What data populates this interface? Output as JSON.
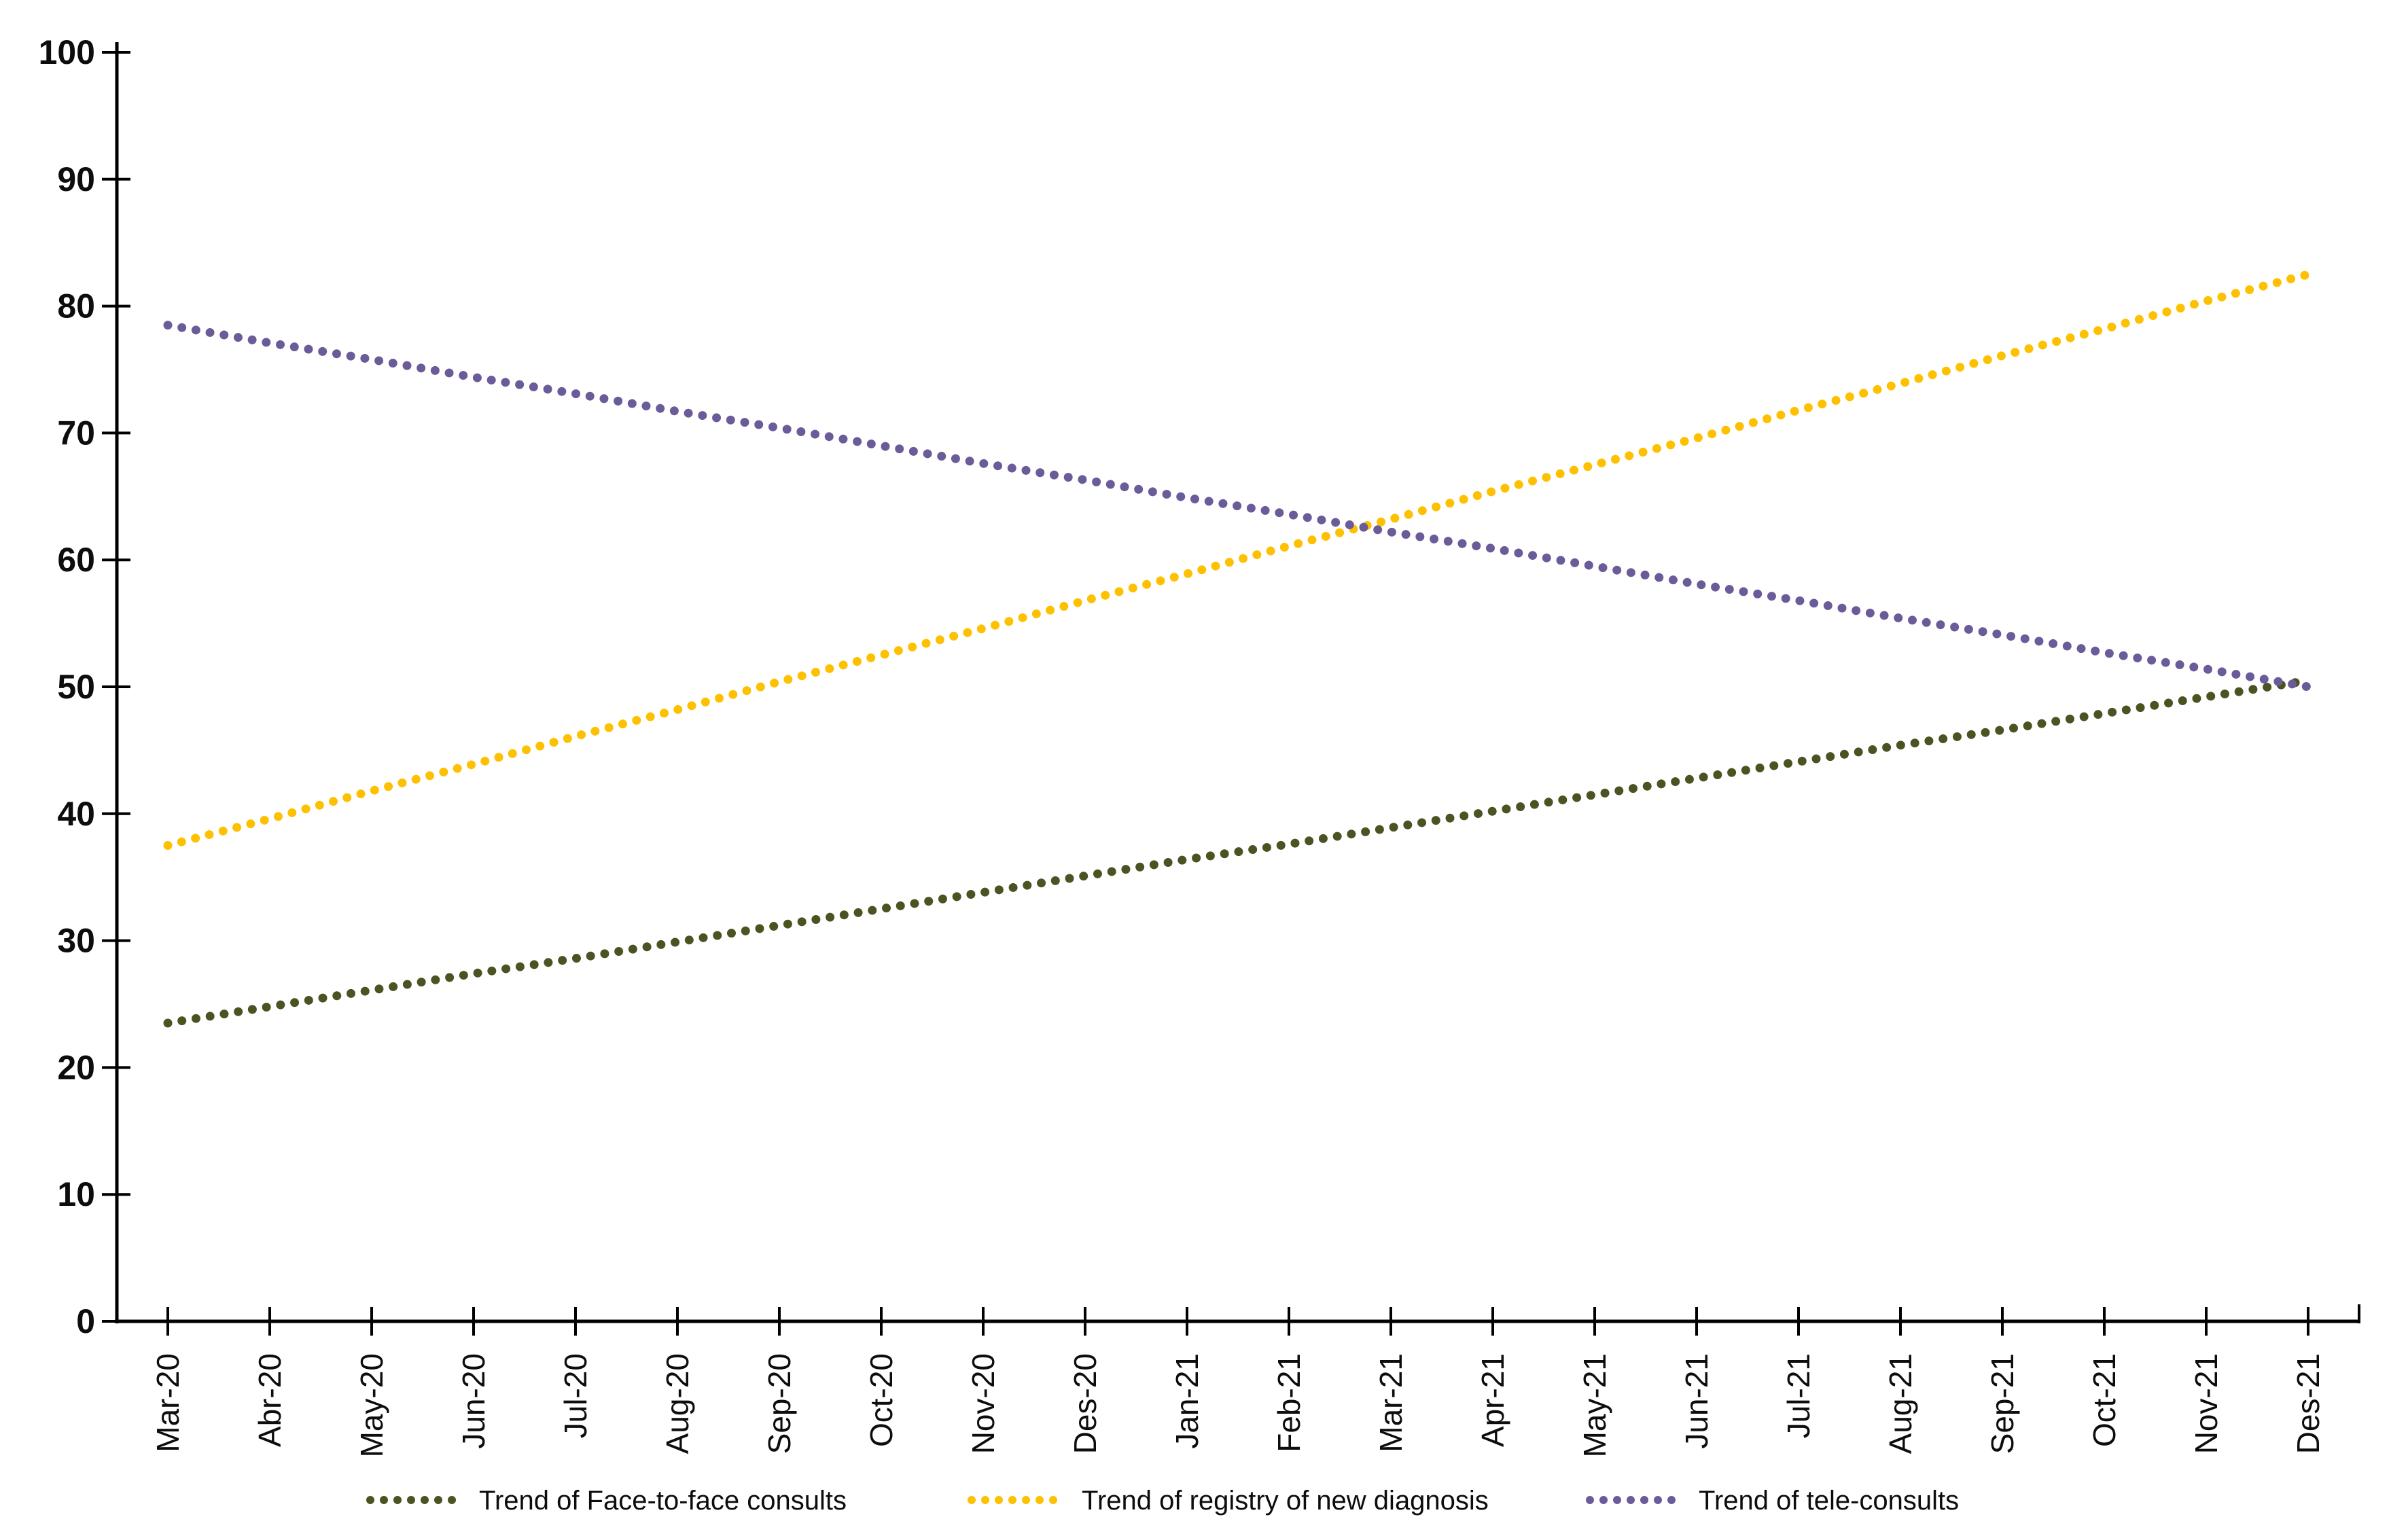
{
  "chart_data": {
    "type": "line",
    "title": "",
    "xlabel": "",
    "ylabel": "",
    "grid": false,
    "legend_position": "bottom",
    "background": "#ffffff",
    "axis_color": "#000000",
    "text_color": "#0d0d0d",
    "ylim": [
      0,
      100
    ],
    "ytick_step": 10,
    "ytick_labels": [
      "0",
      "10",
      "20",
      "30",
      "40",
      "50",
      "60",
      "70",
      "80",
      "90",
      "100"
    ],
    "line_style": "dotted",
    "categories": [
      "Mar-20",
      "Abr-20",
      "May-20",
      "Jun-20",
      "Jul-20",
      "Aug-20",
      "Sep-20",
      "Oct-20",
      "Nov-20",
      "Des-20",
      "Jan-21",
      "Feb-21",
      "Mar-21",
      "Apr-21",
      "May-21",
      "Jun-21",
      "Jul-21",
      "Aug-21",
      "Sep-21",
      "Oct-21",
      "Nov-21",
      "Des-21"
    ],
    "series": [
      {
        "name": "Trend of Face-to-face consults",
        "color": "#4b5322",
        "style": "dotted",
        "values": [
          23.5,
          24.8,
          26.1,
          27.4,
          28.6,
          29.9,
          31.2,
          32.5,
          33.8,
          35.1,
          36.4,
          37.6,
          38.9,
          40.2,
          41.5,
          42.8,
          44.1,
          45.4,
          46.6,
          47.9,
          49.2,
          50.5
        ]
      },
      {
        "name": "Trend of registry of new diagnosis",
        "color": "#fdc101",
        "style": "dotted",
        "values": [
          37.5,
          39.6,
          41.8,
          43.9,
          46.1,
          48.2,
          50.4,
          52.5,
          54.6,
          56.8,
          58.9,
          61.1,
          63.2,
          65.4,
          67.5,
          69.6,
          71.8,
          73.9,
          76.1,
          78.2,
          80.4,
          82.5
        ]
      },
      {
        "name": "Trend of tele-consults",
        "color": "#6b5c99",
        "style": "dotted",
        "values": [
          78.5,
          77.1,
          75.8,
          74.4,
          73.1,
          71.7,
          70.4,
          69.0,
          67.6,
          66.3,
          64.9,
          63.6,
          62.2,
          60.9,
          59.5,
          58.1,
          56.8,
          55.4,
          54.1,
          52.7,
          51.4,
          50.0
        ]
      }
    ]
  }
}
